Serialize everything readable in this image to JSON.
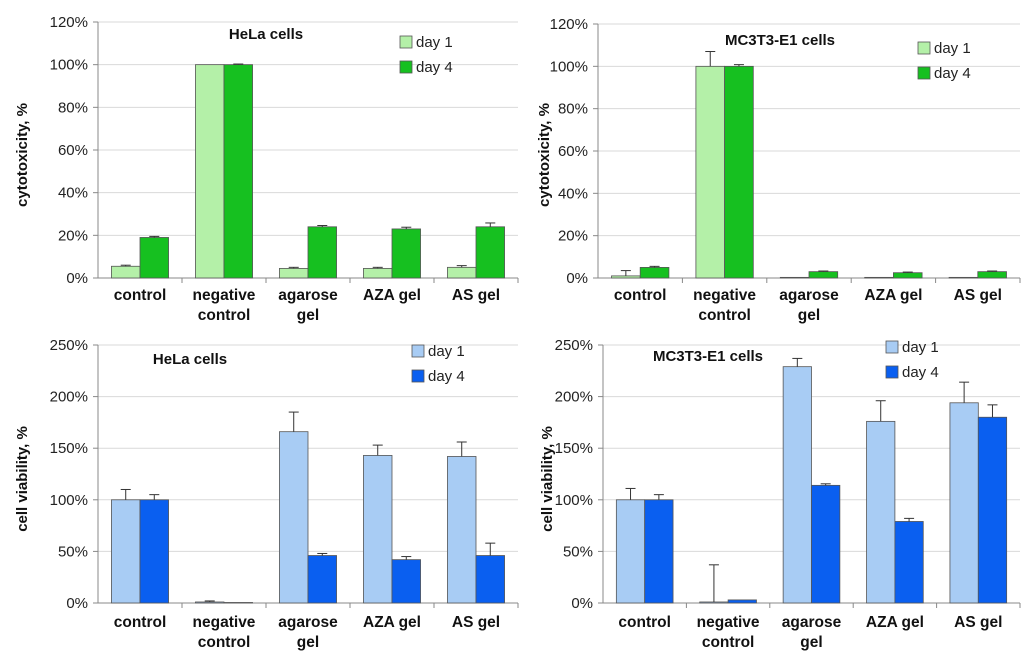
{
  "chart_data": [
    {
      "type": "bar",
      "title": "HeLa cells",
      "ylabel": "cytotoxicity, %",
      "yticks": [
        "0%",
        "20%",
        "40%",
        "60%",
        "80%",
        "100%",
        "120%"
      ],
      "ylim": [
        0,
        120
      ],
      "categories": [
        [
          "control"
        ],
        [
          "negative",
          "control"
        ],
        [
          "agarose",
          "gel"
        ],
        [
          "AZA gel"
        ],
        [
          "AS gel"
        ]
      ],
      "legend_position": "top-right",
      "series": [
        {
          "name": "day 1",
          "color": "#b4f0a8",
          "values": [
            5.5,
            100,
            4.5,
            4.5,
            5
          ],
          "errors": [
            0.5,
            0,
            0.5,
            0.5,
            0.8
          ]
        },
        {
          "name": "day 4",
          "color": "#16c020",
          "values": [
            19,
            100,
            24,
            23,
            24
          ],
          "errors": [
            0.5,
            0.3,
            0.6,
            0.8,
            1.8
          ]
        }
      ]
    },
    {
      "type": "bar",
      "title": "MC3T3-E1 cells",
      "ylabel": "cytotoxicity, %",
      "yticks": [
        "0%",
        "20%",
        "40%",
        "60%",
        "80%",
        "100%",
        "120%"
      ],
      "ylim": [
        0,
        120
      ],
      "categories": [
        [
          "control"
        ],
        [
          "negative",
          "control"
        ],
        [
          "agarose",
          "gel"
        ],
        [
          "AZA gel"
        ],
        [
          "AS gel"
        ]
      ],
      "legend_position": "top-right",
      "series": [
        {
          "name": "day 1",
          "color": "#b4f0a8",
          "values": [
            1,
            100,
            0.3,
            0.3,
            0.3
          ],
          "errors": [
            2.5,
            7,
            0,
            0,
            0
          ]
        },
        {
          "name": "day 4",
          "color": "#16c020",
          "values": [
            5,
            100,
            3,
            2.5,
            3
          ],
          "errors": [
            0.5,
            0.8,
            0.3,
            0.3,
            0.3
          ]
        }
      ]
    },
    {
      "type": "bar",
      "title": "HeLa cells",
      "ylabel": "cell viability, %",
      "yticks": [
        "0%",
        "50%",
        "100%",
        "150%",
        "200%",
        "250%"
      ],
      "ylim": [
        0,
        250
      ],
      "categories": [
        [
          "control"
        ],
        [
          "negative",
          "control"
        ],
        [
          "agarose",
          "gel"
        ],
        [
          "AZA gel"
        ],
        [
          "AS gel"
        ]
      ],
      "legend_position": "top-right",
      "series": [
        {
          "name": "day 1",
          "color": "#a8ccf4",
          "values": [
            100,
            1,
            166,
            143,
            142
          ],
          "errors": [
            10,
            1,
            19,
            10,
            14
          ]
        },
        {
          "name": "day 4",
          "color": "#0a5ff0",
          "values": [
            100,
            0.5,
            46,
            42,
            46
          ],
          "errors": [
            5,
            0,
            2,
            3,
            12
          ]
        }
      ]
    },
    {
      "type": "bar",
      "title": "MC3T3-E1 cells",
      "ylabel": "cell viability, %",
      "yticks": [
        "0%",
        "50%",
        "100%",
        "150%",
        "200%",
        "250%"
      ],
      "ylim": [
        0,
        250
      ],
      "categories": [
        [
          "control"
        ],
        [
          "negative",
          "control"
        ],
        [
          "agarose",
          "gel"
        ],
        [
          "AZA gel"
        ],
        [
          "AS gel"
        ]
      ],
      "legend_position": "top-right",
      "series": [
        {
          "name": "day 1",
          "color": "#a8ccf4",
          "values": [
            100,
            1,
            229,
            176,
            194
          ],
          "errors": [
            11,
            36,
            8,
            20,
            20
          ]
        },
        {
          "name": "day 4",
          "color": "#0a5ff0",
          "values": [
            100,
            3,
            114,
            79,
            180
          ],
          "errors": [
            5,
            0,
            1.5,
            3,
            12
          ]
        }
      ]
    }
  ]
}
